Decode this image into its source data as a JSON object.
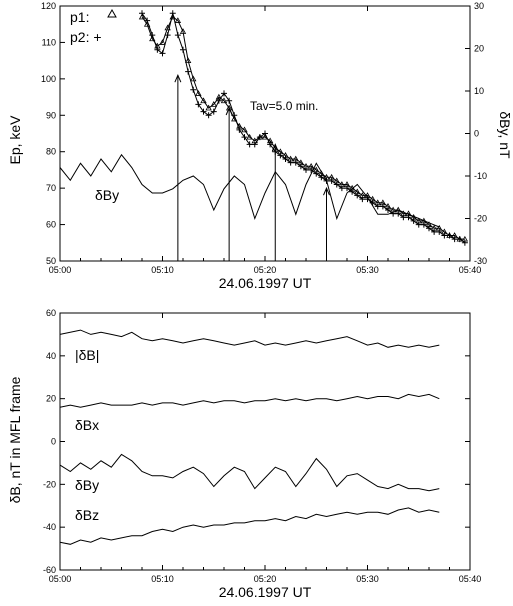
{
  "chart_data": [
    {
      "type": "line",
      "xlabel": "24.06.1997 UT",
      "ylabel_left": "Ep, keV",
      "ylabel_right": "δBy, nT",
      "xlim": [
        "05:00",
        "05:40"
      ],
      "x_ticks": [
        "05:00",
        "05:10",
        "05:20",
        "05:30",
        "05:40"
      ],
      "ylim_left": [
        50,
        120
      ],
      "y_ticks_left": [
        50,
        60,
        70,
        80,
        90,
        100,
        110,
        120
      ],
      "ylim_right": [
        -30,
        30
      ],
      "y_ticks_right": [
        -30,
        -20,
        -10,
        0,
        10,
        20,
        30
      ],
      "legend": [
        {
          "label": "p1: ",
          "marker": "triangle"
        },
        {
          "label": "p2: +",
          "marker": "plus"
        }
      ],
      "annotation_tav": "Tav=5.0 min.",
      "annotation_dby": "δBy",
      "series": [
        {
          "name": "p1",
          "axis": "left",
          "marker": "triangle",
          "x": [
            8.0,
            8.5,
            9.0,
            9.5,
            10.0,
            10.5,
            11.0,
            11.5,
            12.0,
            12.5,
            13.0,
            13.5,
            14.0,
            14.5,
            15.0,
            15.5,
            16.0,
            16.5,
            17.0,
            17.5,
            18.0,
            18.5,
            19.0,
            19.5,
            20.0,
            20.5,
            21.0,
            21.5,
            22.0,
            22.5,
            23.0,
            23.5,
            24.0,
            24.5,
            25.0,
            25.5,
            26.0,
            26.5,
            27.0,
            27.5,
            28.0,
            28.5,
            29.0,
            29.5,
            30.0,
            30.5,
            31.0,
            31.5,
            32.0,
            32.5,
            33.0,
            33.5,
            34.0,
            34.5,
            35.0,
            35.5,
            36.0,
            36.5,
            37.0,
            37.5,
            38.0,
            38.5,
            39.0,
            39.5
          ],
          "y": [
            117,
            115,
            111,
            109,
            110,
            114,
            117,
            116,
            113,
            105,
            100,
            96,
            94,
            92,
            93,
            95,
            94,
            92,
            89,
            87,
            86,
            84,
            83,
            84,
            84,
            83,
            81,
            80,
            79,
            78,
            78,
            77,
            76,
            76,
            75,
            74,
            73,
            73,
            72,
            71,
            71,
            70,
            69,
            68,
            68,
            67,
            66,
            66,
            65,
            64,
            64,
            63,
            63,
            62,
            61,
            61,
            60,
            59,
            59,
            58,
            57,
            57,
            56,
            56
          ]
        },
        {
          "name": "p2",
          "axis": "left",
          "marker": "plus",
          "x": [
            8.0,
            8.5,
            9.0,
            9.5,
            10.0,
            10.5,
            11.0,
            11.5,
            12.0,
            12.5,
            13.0,
            13.5,
            14.0,
            14.5,
            15.0,
            15.5,
            16.0,
            16.5,
            17.0,
            17.5,
            18.0,
            18.5,
            19.0,
            19.5,
            20.0,
            20.5,
            21.0,
            21.5,
            22.0,
            22.5,
            23.0,
            23.5,
            24.0,
            24.5,
            25.0,
            25.5,
            26.0,
            26.5,
            27.0,
            27.5,
            28.0,
            28.5,
            29.0,
            29.5,
            30.0,
            30.5,
            31.0,
            31.5,
            32.0,
            32.5,
            33.0,
            33.5,
            34.0,
            34.5,
            35.0,
            35.5,
            36.0,
            36.5,
            37.0,
            37.5,
            38.0,
            38.5,
            39.0,
            39.5
          ],
          "y": [
            118,
            116,
            112,
            108,
            107,
            112,
            118,
            112,
            108,
            102,
            97,
            93,
            91,
            90,
            91,
            94,
            96,
            94,
            90,
            86,
            84,
            82,
            82,
            84,
            85,
            82,
            80,
            79,
            78,
            77,
            77,
            76,
            75,
            75,
            74,
            73,
            72,
            72,
            71,
            70,
            70,
            69,
            68,
            67,
            67,
            66,
            65,
            65,
            64,
            63,
            63,
            62,
            62,
            61,
            60,
            60,
            59,
            58,
            58,
            57,
            57,
            56,
            56,
            55
          ]
        },
        {
          "name": "δBy",
          "axis": "right",
          "x": [
            0,
            1,
            2,
            3,
            4,
            5,
            6,
            7,
            8,
            9,
            10,
            11,
            12,
            13,
            14,
            15,
            16,
            17,
            18,
            19,
            20,
            21,
            22,
            23,
            24,
            25,
            26,
            27,
            28,
            29,
            30,
            31,
            32,
            33,
            34,
            35,
            36,
            37
          ],
          "y": [
            -8,
            -11,
            -7,
            -10,
            -6,
            -9,
            -5,
            -8,
            -12,
            -14,
            -14,
            -13,
            -11,
            -10,
            -12,
            -18,
            -13,
            -10,
            -12,
            -20,
            -14,
            -9,
            -12,
            -19,
            -12,
            -7,
            -11,
            -20,
            -14,
            -12,
            -15,
            -19,
            -19,
            -18,
            -19,
            -20,
            -21,
            -22
          ]
        }
      ],
      "event_markers": [
        {
          "x": 11.5,
          "y_top": 101
        },
        {
          "x": 16.5,
          "y_top": 92
        },
        {
          "x": 21.0,
          "y_top": 82
        },
        {
          "x": 26.0,
          "y_top": 70
        }
      ]
    },
    {
      "type": "line",
      "xlabel": "24.06.1997 UT",
      "ylabel": "δB, nT in MFL frame",
      "xlim": [
        "05:00",
        "05:40"
      ],
      "x_ticks": [
        "05:00",
        "05:10",
        "05:20",
        "05:30",
        "05:40"
      ],
      "ylim": [
        -60,
        60
      ],
      "y_ticks": [
        -60,
        -40,
        -20,
        0,
        20,
        40,
        60
      ],
      "series": [
        {
          "name": "|δB|",
          "x": [
            0,
            1,
            2,
            3,
            4,
            5,
            6,
            7,
            8,
            9,
            10,
            11,
            12,
            13,
            14,
            15,
            16,
            17,
            18,
            19,
            20,
            21,
            22,
            23,
            24,
            25,
            26,
            27,
            28,
            29,
            30,
            31,
            32,
            33,
            34,
            35,
            36,
            37
          ],
          "y": [
            50,
            51,
            52,
            50,
            51,
            50,
            49,
            51,
            48,
            47,
            48,
            47,
            46,
            47,
            48,
            47,
            46,
            45,
            46,
            47,
            45,
            46,
            45,
            46,
            47,
            46,
            47,
            48,
            49,
            47,
            45,
            46,
            44,
            45,
            44,
            45,
            44,
            45
          ]
        },
        {
          "name": "δBx",
          "x": [
            0,
            1,
            2,
            3,
            4,
            5,
            6,
            7,
            8,
            9,
            10,
            11,
            12,
            13,
            14,
            15,
            16,
            17,
            18,
            19,
            20,
            21,
            22,
            23,
            24,
            25,
            26,
            27,
            28,
            29,
            30,
            31,
            32,
            33,
            34,
            35,
            36,
            37
          ],
          "y": [
            16,
            17,
            16,
            17,
            18,
            17,
            17,
            17,
            18,
            17,
            18,
            18,
            17,
            18,
            19,
            18,
            19,
            19,
            18,
            19,
            19,
            20,
            19,
            20,
            19,
            20,
            20,
            19,
            20,
            21,
            20,
            21,
            21,
            20,
            22,
            21,
            22,
            20
          ]
        },
        {
          "name": "δBy",
          "x": [
            0,
            1,
            2,
            3,
            4,
            5,
            6,
            7,
            8,
            9,
            10,
            11,
            12,
            13,
            14,
            15,
            16,
            17,
            18,
            19,
            20,
            21,
            22,
            23,
            24,
            25,
            26,
            27,
            28,
            29,
            30,
            31,
            32,
            33,
            34,
            35,
            36,
            37
          ],
          "y": [
            -11,
            -14,
            -10,
            -13,
            -9,
            -12,
            -6,
            -9,
            -14,
            -16,
            -16,
            -17,
            -14,
            -12,
            -15,
            -21,
            -16,
            -12,
            -14,
            -22,
            -17,
            -12,
            -14,
            -21,
            -15,
            -8,
            -13,
            -21,
            -16,
            -15,
            -18,
            -21,
            -22,
            -20,
            -22,
            -22,
            -23,
            -22
          ]
        },
        {
          "name": "δBz",
          "x": [
            0,
            1,
            2,
            3,
            4,
            5,
            6,
            7,
            8,
            9,
            10,
            11,
            12,
            13,
            14,
            15,
            16,
            17,
            18,
            19,
            20,
            21,
            22,
            23,
            24,
            25,
            26,
            27,
            28,
            29,
            30,
            31,
            32,
            33,
            34,
            35,
            36,
            37
          ],
          "y": [
            -47,
            -48,
            -46,
            -47,
            -45,
            -46,
            -45,
            -44,
            -44,
            -42,
            -41,
            -42,
            -40,
            -39,
            -40,
            -39,
            -39,
            -38,
            -38,
            -37,
            -37,
            -36,
            -37,
            -35,
            -36,
            -34,
            -35,
            -34,
            -33,
            -34,
            -33,
            -33,
            -34,
            -32,
            -31,
            -33,
            -32,
            -33
          ]
        }
      ]
    }
  ]
}
